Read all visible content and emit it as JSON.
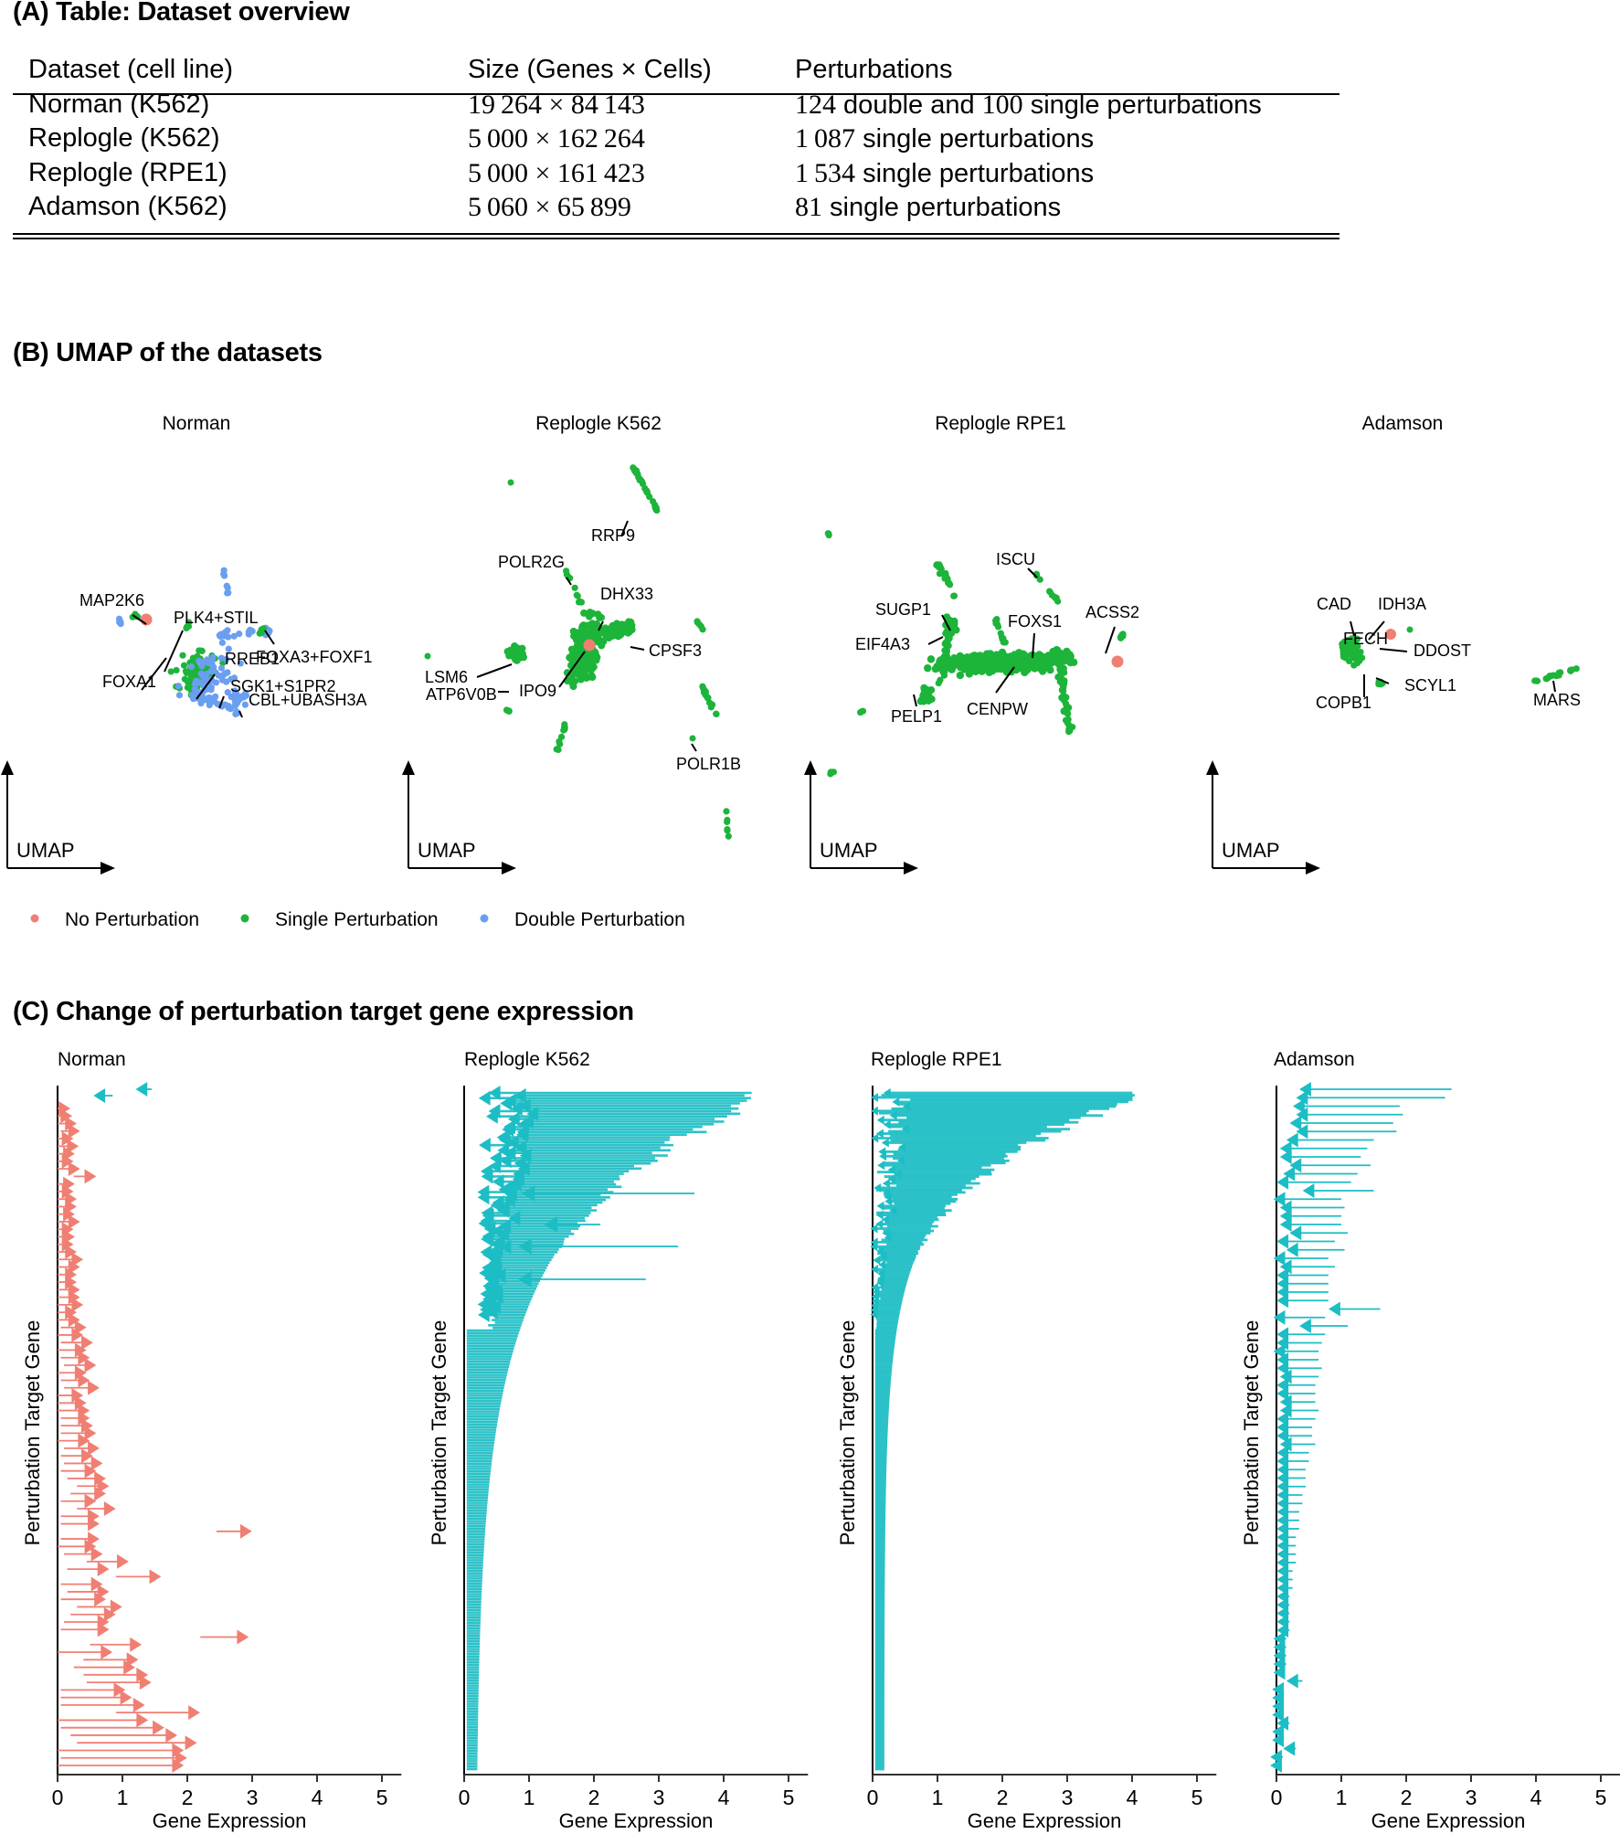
{
  "panel_a": {
    "title": "(A) Table: Dataset overview",
    "headers": [
      "Dataset (cell line)",
      "Size (Genes × Cells)",
      "Perturbations"
    ],
    "rows": [
      {
        "dataset": "Norman (K562)",
        "genes": "19 264",
        "cells": "84 143",
        "pert_parts": [
          [
            "num",
            "124"
          ],
          [
            "txt",
            " double and "
          ],
          [
            "num",
            "100"
          ],
          [
            "txt",
            " single perturbations"
          ]
        ]
      },
      {
        "dataset": "Replogle (K562)",
        "genes": "5 000",
        "cells": "162 264",
        "pert_parts": [
          [
            "num",
            "1 087"
          ],
          [
            "txt",
            " single perturbations"
          ]
        ]
      },
      {
        "dataset": "Replogle (RPE1)",
        "genes": "5 000",
        "cells": "161 423",
        "pert_parts": [
          [
            "num",
            "1 534"
          ],
          [
            "txt",
            " single perturbations"
          ]
        ]
      },
      {
        "dataset": "Adamson (K562)",
        "genes": "5 060",
        "cells": "65 899",
        "pert_parts": [
          [
            "num",
            "81"
          ],
          [
            "txt",
            " single perturbations"
          ]
        ]
      }
    ]
  },
  "panel_b": {
    "title": "(B) UMAP of the datasets",
    "axis_label": "UMAP",
    "legend": [
      {
        "label": "No Perturbation",
        "color": "#F07F73"
      },
      {
        "label": "Single Perturbation",
        "color": "#1DB43A"
      },
      {
        "label": "Double Perturbation",
        "color": "#6A9EF0"
      }
    ],
    "plots": [
      {
        "title": "Norman",
        "labels": [
          "MAP2K6",
          "PLK4+STIL",
          "FOXA3+FOXF1",
          "RREB1",
          "FOXA1",
          "SGK1+S1PR2",
          "CBL+UBASH3A"
        ]
      },
      {
        "title": "Replogle K562",
        "labels": [
          "RRP9",
          "POLR2G",
          "DHX33",
          "CPSF3",
          "LSM6",
          "ATP6V0B",
          "IPO9",
          "POLR1B"
        ]
      },
      {
        "title": "Replogle RPE1",
        "labels": [
          "ISCU",
          "SUGP1",
          "FOXS1",
          "ACSS2",
          "EIF4A3",
          "PELP1",
          "CENPW"
        ]
      },
      {
        "title": "Adamson",
        "labels": [
          "CAD",
          "IDH3A",
          "FECH",
          "DDOST",
          "SCYL1",
          "COPB1",
          "MARS"
        ]
      }
    ]
  },
  "panel_c": {
    "title": "(C) Change of perturbation target gene expression"
  },
  "chart_data": [
    {
      "type": "scatter",
      "title": "UMAP of the datasets",
      "subplots": [
        "Norman",
        "Replogle K562",
        "Replogle RPE1",
        "Adamson"
      ],
      "xlabel": "UMAP",
      "ylabel": "UMAP",
      "legend": [
        "No Perturbation",
        "Single Perturbation",
        "Double Perturbation"
      ],
      "legend_position": "bottom-left",
      "annotations": {
        "Norman": [
          "MAP2K6",
          "PLK4+STIL",
          "FOXA3+FOXF1",
          "RREB1",
          "FOXA1",
          "SGK1+S1PR2",
          "CBL+UBASH3A"
        ],
        "Replogle K562": [
          "RRP9",
          "POLR2G",
          "DHX33",
          "CPSF3",
          "LSM6",
          "ATP6V0B",
          "IPO9",
          "POLR1B"
        ],
        "Replogle RPE1": [
          "ISCU",
          "SUGP1",
          "FOXS1",
          "ACSS2",
          "EIF4A3",
          "PELP1",
          "CENPW"
        ],
        "Adamson": [
          "CAD",
          "IDH3A",
          "FECH",
          "DDOST",
          "SCYL1",
          "COPB1",
          "MARS"
        ]
      }
    },
    {
      "type": "arrow",
      "title": "Change of perturbation target gene expression",
      "xlabel": "Gene Expression",
      "ylabel": "Perturbation Target Gene",
      "xlim": [
        0,
        5.3
      ],
      "xticks": [
        0,
        1,
        2,
        3,
        4,
        5
      ],
      "increase_color": "#F07F73",
      "decrease_color": "#1CBDC4",
      "subplots": [
        {
          "title": "Norman",
          "arrows": [
            [
              1.45,
              1.35
            ],
            [
              0.85,
              0.7
            ],
            [
              0.0,
              0.05
            ],
            [
              0.0,
              0.08
            ],
            [
              0.0,
              0.15
            ],
            [
              0.05,
              0.2
            ],
            [
              0.0,
              0.1
            ],
            [
              0.0,
              0.18
            ],
            [
              0.0,
              0.12
            ],
            [
              0.0,
              0.1
            ],
            [
              0.0,
              0.2
            ],
            [
              0.25,
              0.45
            ],
            [
              0.0,
              0.12
            ],
            [
              0.0,
              0.1
            ],
            [
              0.0,
              0.15
            ],
            [
              0.0,
              0.15
            ],
            [
              0.0,
              0.12
            ],
            [
              0.0,
              0.2
            ],
            [
              0.0,
              0.1
            ],
            [
              0.0,
              0.12
            ],
            [
              0.0,
              0.1
            ],
            [
              0.0,
              0.15
            ],
            [
              0.0,
              0.25
            ],
            [
              0.0,
              0.2
            ],
            [
              0.0,
              0.15
            ],
            [
              0.0,
              0.15
            ],
            [
              0.0,
              0.2
            ],
            [
              0.0,
              0.2
            ],
            [
              0.0,
              0.25
            ],
            [
              0.0,
              0.15
            ],
            [
              0.0,
              0.2
            ],
            [
              0.05,
              0.3
            ],
            [
              0.0,
              0.25
            ],
            [
              0.05,
              0.4
            ],
            [
              0.0,
              0.3
            ],
            [
              0.05,
              0.35
            ],
            [
              0.1,
              0.45
            ],
            [
              0.0,
              0.3
            ],
            [
              0.05,
              0.35
            ],
            [
              0.1,
              0.5
            ],
            [
              0.0,
              0.25
            ],
            [
              0.0,
              0.3
            ],
            [
              0.0,
              0.35
            ],
            [
              0.05,
              0.35
            ],
            [
              0.05,
              0.4
            ],
            [
              0.05,
              0.45
            ],
            [
              0.0,
              0.35
            ],
            [
              0.1,
              0.5
            ],
            [
              0.05,
              0.4
            ],
            [
              0.1,
              0.55
            ],
            [
              0.05,
              0.45
            ],
            [
              0.15,
              0.6
            ],
            [
              0.3,
              0.65
            ],
            [
              0.2,
              0.6
            ],
            [
              0.05,
              0.45
            ],
            [
              0.3,
              0.75
            ],
            [
              0.05,
              0.5
            ],
            [
              0.05,
              0.5
            ],
            [
              2.45,
              2.85
            ],
            [
              0.05,
              0.5
            ],
            [
              0.0,
              0.45
            ],
            [
              0.1,
              0.55
            ],
            [
              0.45,
              0.95
            ],
            [
              0.15,
              0.65
            ],
            [
              0.9,
              1.45
            ],
            [
              0.05,
              0.55
            ],
            [
              0.15,
              0.65
            ],
            [
              0.05,
              0.6
            ],
            [
              0.3,
              0.85
            ],
            [
              0.2,
              0.75
            ],
            [
              0.1,
              0.65
            ],
            [
              0.05,
              0.65
            ],
            [
              2.2,
              2.8
            ],
            [
              0.5,
              1.15
            ],
            [
              0.0,
              0.7
            ],
            [
              0.4,
              1.1
            ],
            [
              0.25,
              1.05
            ],
            [
              0.4,
              1.25
            ],
            [
              0.45,
              1.3
            ],
            [
              0.05,
              0.9
            ],
            [
              0.05,
              1.0
            ],
            [
              0.05,
              1.2
            ],
            [
              0.9,
              2.05
            ],
            [
              0.0,
              1.25
            ],
            [
              0.05,
              1.5
            ],
            [
              0.2,
              1.7
            ],
            [
              0.3,
              2.0
            ],
            [
              0.0,
              1.8
            ],
            [
              0.05,
              1.85
            ],
            [
              0.0,
              1.8
            ]
          ]
        },
        {
          "title": "Replogle K562",
          "n_arrows_approx": 1087,
          "profile_top_start_max": 4.4,
          "outliers": [
            [
              3.55,
              1.05
            ],
            [
              3.3,
              1.0
            ],
            [
              2.1,
              1.4
            ],
            [
              2.8,
              1.0
            ]
          ]
        },
        {
          "title": "Replogle RPE1",
          "n_arrows_approx": 1534,
          "profile_top_start_max": 4.0
        },
        {
          "title": "Adamson",
          "arrows": [
            [
              2.7,
              0.5
            ],
            [
              2.6,
              0.45
            ],
            [
              1.9,
              0.4
            ],
            [
              1.95,
              0.45
            ],
            [
              1.8,
              0.35
            ],
            [
              1.85,
              0.45
            ],
            [
              1.5,
              0.3
            ],
            [
              1.4,
              0.2
            ],
            [
              1.3,
              0.2
            ],
            [
              1.45,
              0.35
            ],
            [
              1.25,
              0.25
            ],
            [
              1.15,
              0.15
            ],
            [
              1.5,
              0.55
            ],
            [
              1.0,
              0.1
            ],
            [
              1.05,
              0.2
            ],
            [
              1.0,
              0.2
            ],
            [
              1.0,
              0.2
            ],
            [
              1.1,
              0.35
            ],
            [
              0.9,
              0.15
            ],
            [
              1.05,
              0.3
            ],
            [
              0.8,
              0.1
            ],
            [
              0.9,
              0.2
            ],
            [
              0.8,
              0.15
            ],
            [
              0.8,
              0.15
            ],
            [
              0.8,
              0.15
            ],
            [
              0.8,
              0.15
            ],
            [
              1.6,
              0.95
            ],
            [
              0.75,
              0.1
            ],
            [
              1.1,
              0.5
            ],
            [
              0.75,
              0.15
            ],
            [
              0.7,
              0.15
            ],
            [
              0.65,
              0.1
            ],
            [
              0.65,
              0.15
            ],
            [
              0.7,
              0.15
            ],
            [
              0.65,
              0.2
            ],
            [
              0.6,
              0.15
            ],
            [
              0.6,
              0.15
            ],
            [
              0.6,
              0.2
            ],
            [
              0.65,
              0.2
            ],
            [
              0.6,
              0.15
            ],
            [
              0.55,
              0.15
            ],
            [
              0.55,
              0.15
            ],
            [
              0.6,
              0.2
            ],
            [
              0.5,
              0.15
            ],
            [
              0.5,
              0.15
            ],
            [
              0.45,
              0.15
            ],
            [
              0.45,
              0.15
            ],
            [
              0.45,
              0.15
            ],
            [
              0.4,
              0.15
            ],
            [
              0.4,
              0.15
            ],
            [
              0.35,
              0.15
            ],
            [
              0.35,
              0.15
            ],
            [
              0.35,
              0.15
            ],
            [
              0.3,
              0.15
            ],
            [
              0.3,
              0.15
            ],
            [
              0.3,
              0.15
            ],
            [
              0.3,
              0.15
            ],
            [
              0.25,
              0.15
            ],
            [
              0.25,
              0.15
            ],
            [
              0.25,
              0.15
            ],
            [
              0.2,
              0.15
            ],
            [
              0.2,
              0.15
            ],
            [
              0.2,
              0.15
            ],
            [
              0.2,
              0.15
            ],
            [
              0.2,
              0.15
            ],
            [
              0.15,
              0.1
            ],
            [
              0.15,
              0.1
            ],
            [
              0.15,
              0.1
            ],
            [
              0.15,
              0.1
            ],
            [
              0.12,
              0.1
            ],
            [
              0.4,
              0.3
            ],
            [
              0.1,
              0.08
            ],
            [
              0.1,
              0.08
            ],
            [
              0.1,
              0.08
            ],
            [
              0.1,
              0.08
            ],
            [
              0.2,
              0.15
            ],
            [
              0.1,
              0.08
            ],
            [
              0.1,
              0.08
            ],
            [
              0.3,
              0.25
            ],
            [
              0.1,
              0.05
            ],
            [
              0.08,
              0.05
            ]
          ]
        }
      ]
    }
  ]
}
